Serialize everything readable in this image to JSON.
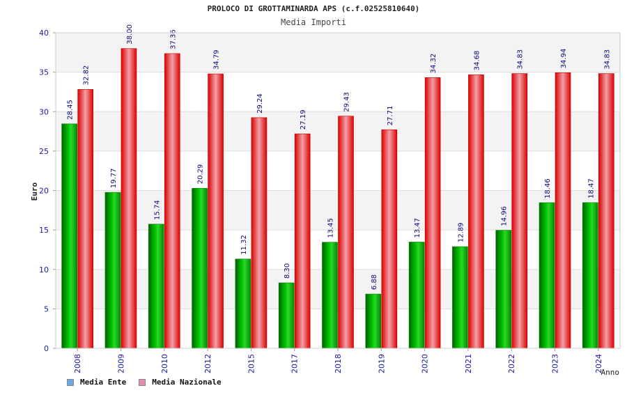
{
  "header": {
    "title": "PROLOCO DI GROTTAMINARDA APS (c.f.02525810640)",
    "subtitle": "Media Importi"
  },
  "legend": {
    "items": [
      {
        "label": "Media Ente",
        "color": "#6ea8e8"
      },
      {
        "label": "Media Nazionale",
        "color": "#e48cb0"
      }
    ]
  },
  "chart_data": {
    "type": "bar",
    "xlabel": "Anno",
    "ylabel": "Euro",
    "ylim": [
      0,
      40
    ],
    "yticks": [
      0,
      5,
      10,
      15,
      20,
      25,
      30,
      35,
      40
    ],
    "grid": true,
    "legend_position": "bottom-left",
    "categories": [
      "2008",
      "2009",
      "2010",
      "2012",
      "2015",
      "2017",
      "2018",
      "2019",
      "2020",
      "2021",
      "2022",
      "2023",
      "2024"
    ],
    "series": [
      {
        "name": "Media Ente",
        "color": "#00a000",
        "values": [
          28.45,
          19.77,
          15.74,
          20.29,
          11.32,
          8.3,
          13.45,
          6.88,
          13.47,
          12.89,
          14.96,
          18.46,
          18.47
        ],
        "labels": [
          "28.45",
          "19.77",
          "15.74",
          "20.29",
          "11.32",
          "8.30",
          "13.45",
          "6.88",
          "13.47",
          "12.89",
          "14.96",
          "18.46",
          "18.47"
        ]
      },
      {
        "name": "Media Nazionale",
        "color": "#e00000",
        "values": [
          32.82,
          38.0,
          37.36,
          34.79,
          29.24,
          27.19,
          29.43,
          27.71,
          34.32,
          34.68,
          34.83,
          34.94,
          34.83
        ],
        "labels": [
          "32.82",
          "38.00",
          "37.36",
          "34.79",
          "29.24",
          "27.19",
          "29.43",
          "27.71",
          "34.32",
          "34.68",
          "34.83",
          "34.94",
          "34.83"
        ]
      }
    ]
  }
}
